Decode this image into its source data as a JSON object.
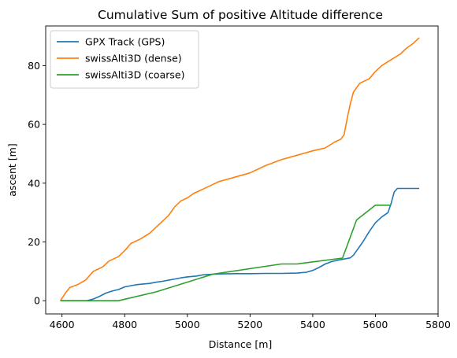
{
  "chart_data": {
    "type": "line",
    "title": "Cumulative Sum of positive Altitude difference",
    "xlabel": "Distance [m]",
    "ylabel": "ascent [m]",
    "xlim": [
      4548,
      5800
    ],
    "ylim": [
      -4.5,
      93.5
    ],
    "xticks": [
      4600,
      4800,
      5000,
      5200,
      5400,
      5600,
      5800
    ],
    "yticks": [
      0,
      20,
      40,
      60,
      80
    ],
    "grid": false,
    "legend_position": "top-left",
    "series": [
      {
        "name": "GPX Track (GPS)",
        "color": "#1f77b4",
        "points": [
          [
            4595,
            0
          ],
          [
            4680,
            0
          ],
          [
            4700,
            0.6
          ],
          [
            4720,
            1.5
          ],
          [
            4740,
            2.6
          ],
          [
            4760,
            3.3
          ],
          [
            4780,
            3.8
          ],
          [
            4800,
            4.7
          ],
          [
            4820,
            5.1
          ],
          [
            4840,
            5.5
          ],
          [
            4860,
            5.7
          ],
          [
            4880,
            5.9
          ],
          [
            4900,
            6.3
          ],
          [
            4920,
            6.6
          ],
          [
            4940,
            7
          ],
          [
            4960,
            7.4
          ],
          [
            4980,
            7.8
          ],
          [
            5000,
            8.1
          ],
          [
            5030,
            8.4
          ],
          [
            5050,
            8.8
          ],
          [
            5080,
            9
          ],
          [
            5100,
            9.1
          ],
          [
            5150,
            9.2
          ],
          [
            5200,
            9.2
          ],
          [
            5250,
            9.3
          ],
          [
            5300,
            9.3
          ],
          [
            5350,
            9.4
          ],
          [
            5380,
            9.7
          ],
          [
            5400,
            10.3
          ],
          [
            5420,
            11.3
          ],
          [
            5440,
            12.5
          ],
          [
            5460,
            13.3
          ],
          [
            5480,
            13.8
          ],
          [
            5500,
            14.2
          ],
          [
            5520,
            14.6
          ],
          [
            5530,
            15.5
          ],
          [
            5540,
            17
          ],
          [
            5560,
            20
          ],
          [
            5580,
            23.5
          ],
          [
            5600,
            26.5
          ],
          [
            5620,
            28.5
          ],
          [
            5640,
            30
          ],
          [
            5650,
            33
          ],
          [
            5660,
            37
          ],
          [
            5670,
            38.2
          ],
          [
            5740,
            38.2
          ]
        ]
      },
      {
        "name": "swissAlti3D (dense)",
        "color": "#ff7f0e",
        "points": [
          [
            4595,
            0
          ],
          [
            4610,
            2.5
          ],
          [
            4625,
            4.5
          ],
          [
            4650,
            5.5
          ],
          [
            4675,
            7
          ],
          [
            4700,
            10
          ],
          [
            4730,
            11.5
          ],
          [
            4750,
            13.5
          ],
          [
            4780,
            15
          ],
          [
            4800,
            17
          ],
          [
            4820,
            19.5
          ],
          [
            4850,
            21
          ],
          [
            4880,
            23
          ],
          [
            4900,
            25
          ],
          [
            4920,
            27
          ],
          [
            4940,
            29
          ],
          [
            4960,
            32
          ],
          [
            4980,
            34
          ],
          [
            5000,
            35
          ],
          [
            5020,
            36.5
          ],
          [
            5050,
            38
          ],
          [
            5080,
            39.5
          ],
          [
            5100,
            40.5
          ],
          [
            5150,
            42
          ],
          [
            5200,
            43.5
          ],
          [
            5250,
            46
          ],
          [
            5300,
            48
          ],
          [
            5350,
            49.5
          ],
          [
            5400,
            51
          ],
          [
            5440,
            52
          ],
          [
            5470,
            54
          ],
          [
            5490,
            55
          ],
          [
            5500,
            56.5
          ],
          [
            5510,
            62
          ],
          [
            5520,
            67
          ],
          [
            5530,
            71
          ],
          [
            5550,
            74
          ],
          [
            5580,
            75.5
          ],
          [
            5600,
            78
          ],
          [
            5620,
            80
          ],
          [
            5650,
            82
          ],
          [
            5680,
            84
          ],
          [
            5700,
            86
          ],
          [
            5720,
            87.5
          ],
          [
            5740,
            89.5
          ]
        ]
      },
      {
        "name": "swissAlti3D (coarse)",
        "color": "#2ca02c",
        "points": [
          [
            4595,
            0
          ],
          [
            4780,
            0
          ],
          [
            4900,
            3
          ],
          [
            5080,
            9
          ],
          [
            5300,
            12.5
          ],
          [
            5350,
            12.5
          ],
          [
            5495,
            14.5
          ],
          [
            5540,
            27.5
          ],
          [
            5600,
            32.5
          ],
          [
            5650,
            32.5
          ]
        ]
      }
    ]
  }
}
